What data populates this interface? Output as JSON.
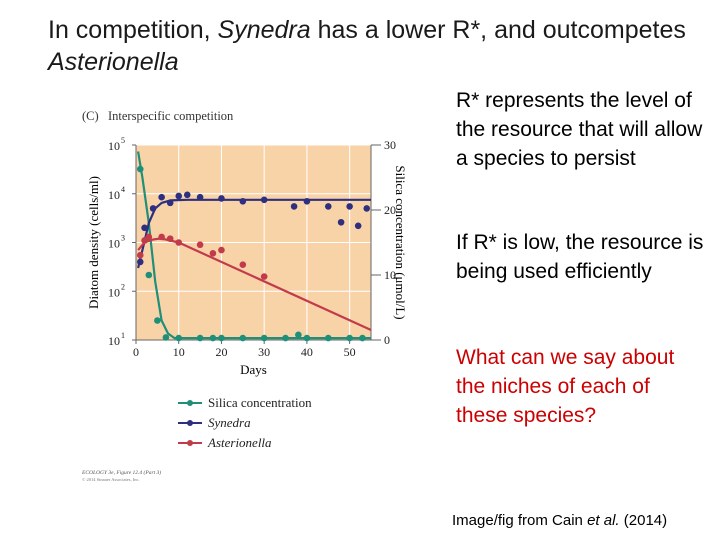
{
  "slide": {
    "title_part1": "In competition, ",
    "title_italic1": "Synedra",
    "title_part2": " has a lower R*, and outcompetes ",
    "title_italic2": "Asterionella",
    "point1": "R* represents the level of the resource that will allow a species to persist",
    "point2": "If R* is low, the resource is being used efficiently",
    "question": "What can we say about the niches of each of these species?",
    "credit_prefix": "Image/fig from Cain ",
    "credit_italic": "et al.",
    "credit_suffix": " (2014)"
  },
  "figure": {
    "panel_label": "(C)",
    "panel_title": "Interspecific competition",
    "source_line1": "ECOLOGY 3e, Figure 12.4 (Part 3)",
    "source_line2": "© 2014 Sinauer Associates, Inc.",
    "colors": {
      "plot_bg": "#f9d3a8",
      "grid": "#ffffff",
      "silica": "#1e8f78",
      "synedra": "#2e2f7e",
      "asterionella": "#c23b4b"
    }
  },
  "chart_data": {
    "type": "line",
    "xlabel": "Days",
    "ylabel": "Diatom density (cells/ml)",
    "y2label": "Silica concentration (μmol/L)",
    "xlim": [
      0,
      55
    ],
    "x_ticks": [
      "0",
      "10",
      "20",
      "30",
      "40",
      "50"
    ],
    "yscale": "log",
    "ylim": [
      10,
      100000
    ],
    "y_ticks": [
      "10",
      "10",
      "10",
      "10",
      "10"
    ],
    "y_tick_exponents": [
      "1",
      "2",
      "3",
      "4",
      "5"
    ],
    "y2lim": [
      0,
      30
    ],
    "y2_ticks": [
      "0",
      "10",
      "20",
      "30"
    ],
    "grid": true,
    "legend_position": "below",
    "series": [
      {
        "name": "Silica concentration",
        "axis": "right",
        "points": [
          [
            1,
            26.3
          ],
          [
            3,
            10
          ],
          [
            5,
            3
          ],
          [
            7,
            0.4
          ],
          [
            10,
            0.3
          ],
          [
            15,
            0.3
          ],
          [
            18,
            0.3
          ],
          [
            20,
            0.3
          ],
          [
            25,
            0.3
          ],
          [
            30,
            0.3
          ],
          [
            35,
            0.3
          ],
          [
            38,
            0.8
          ],
          [
            40,
            0.3
          ],
          [
            45,
            0.3
          ],
          [
            50,
            0.3
          ],
          [
            53,
            0.3
          ]
        ],
        "curve": [
          [
            0.5,
            29
          ],
          [
            1.5,
            25
          ],
          [
            3,
            18
          ],
          [
            4.5,
            9
          ],
          [
            6,
            3
          ],
          [
            7.5,
            1
          ],
          [
            9,
            0.3
          ],
          [
            12,
            0.3
          ],
          [
            55,
            0.3
          ]
        ]
      },
      {
        "name": "Synedra",
        "axis": "left",
        "points": [
          [
            1,
            400
          ],
          [
            2,
            2000
          ],
          [
            4,
            5000
          ],
          [
            6,
            8500
          ],
          [
            8,
            6500
          ],
          [
            10,
            9000
          ],
          [
            12,
            9500
          ],
          [
            15,
            8500
          ],
          [
            20,
            8000
          ],
          [
            25,
            7000
          ],
          [
            30,
            7500
          ],
          [
            37,
            5500
          ],
          [
            40,
            7000
          ],
          [
            45,
            5500
          ],
          [
            48,
            2600
          ],
          [
            50,
            5500
          ],
          [
            52,
            2200
          ],
          [
            54,
            5000
          ]
        ],
        "curve": [
          [
            0.5,
            300
          ],
          [
            1.5,
            700
          ],
          [
            3,
            2500
          ],
          [
            4.5,
            5000
          ],
          [
            6,
            6500
          ],
          [
            8,
            7300
          ],
          [
            12,
            7500
          ],
          [
            55,
            7500
          ]
        ]
      },
      {
        "name": "Asterionella",
        "axis": "left",
        "points": [
          [
            1,
            550
          ],
          [
            2,
            1100
          ],
          [
            3,
            1300
          ],
          [
            6,
            1300
          ],
          [
            8,
            1200
          ],
          [
            10,
            1000
          ],
          [
            15,
            900
          ],
          [
            18,
            600
          ],
          [
            20,
            700
          ],
          [
            25,
            350
          ],
          [
            30,
            200
          ]
        ],
        "curve": [
          [
            0.5,
            700
          ],
          [
            2,
            1000
          ],
          [
            4,
            1150
          ],
          [
            5.5,
            1200
          ],
          [
            7,
            1150
          ],
          [
            10,
            1000
          ],
          [
            55,
            16
          ]
        ]
      }
    ]
  }
}
